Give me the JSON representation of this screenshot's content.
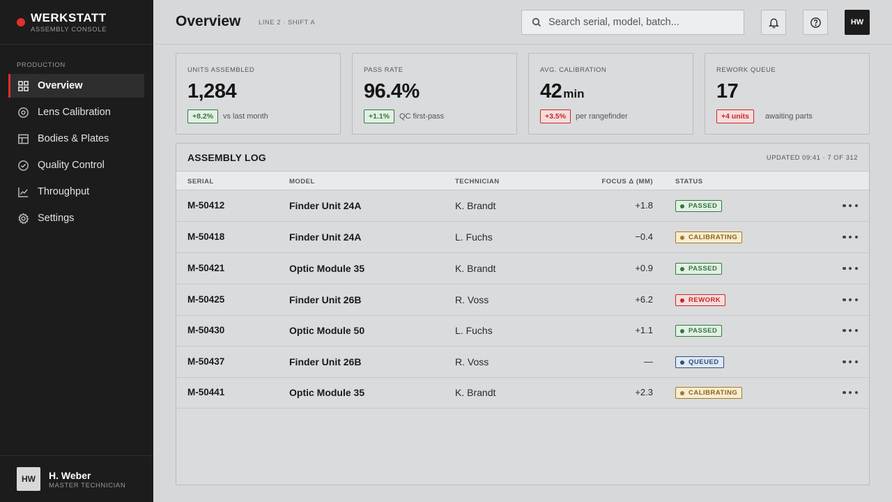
{
  "brand": {
    "name": "WERKSTATT",
    "subtitle": "ASSEMBLY CONSOLE",
    "accent": "#e0302a"
  },
  "sidebar": {
    "section": "PRODUCTION",
    "items": [
      {
        "label": "Overview",
        "icon": "grid-icon",
        "active": true
      },
      {
        "label": "Lens Calibration",
        "icon": "target-icon"
      },
      {
        "label": "Bodies & Plates",
        "icon": "layout-icon"
      },
      {
        "label": "Quality Control",
        "icon": "check-circle-icon"
      },
      {
        "label": "Throughput",
        "icon": "chart-line-icon"
      },
      {
        "label": "Settings",
        "icon": "gear-icon"
      }
    ]
  },
  "user": {
    "initials": "HW",
    "name": "H. Weber",
    "role": "MASTER TECHNICIAN"
  },
  "header": {
    "title": "Overview",
    "subtitle": "LINE 2 · SHIFT A",
    "search_placeholder": "Search serial, model, batch...",
    "avatar_initials": "HW"
  },
  "stats": [
    {
      "label": "UNITS ASSEMBLED",
      "value": "1,284",
      "unit": "",
      "delta": "+8.2%",
      "trend": "up",
      "note": "vs last month"
    },
    {
      "label": "PASS RATE",
      "value": "96.4%",
      "unit": "",
      "delta": "+1.1%",
      "trend": "up",
      "note": "QC first-pass"
    },
    {
      "label": "AVG. CALIBRATION",
      "value": "42",
      "unit": "min",
      "delta": "+3.5%",
      "trend": "down",
      "note": "per rangefinder"
    },
    {
      "label": "REWORK QUEUE",
      "value": "17",
      "unit": "",
      "delta": "+4 units",
      "trend": "down",
      "note": "awaiting parts"
    }
  ],
  "log": {
    "title": "ASSEMBLY LOG",
    "meta": "UPDATED 09:41 · 7 OF 312",
    "columns": {
      "serial": "SERIAL",
      "model": "MODEL",
      "technician": "TECHNICIAN",
      "focus": "FOCUS Δ (MM)",
      "status": "STATUS"
    },
    "rows": [
      {
        "serial": "M-50412",
        "model": "Finder Unit 24A",
        "technician": "K. Brandt",
        "focus": "+1.8",
        "status": "PASSED",
        "status_key": "passed"
      },
      {
        "serial": "M-50418",
        "model": "Finder Unit 24A",
        "technician": "L. Fuchs",
        "focus": "−0.4",
        "status": "CALIBRATING",
        "status_key": "calibrating"
      },
      {
        "serial": "M-50421",
        "model": "Optic Module 35",
        "technician": "K. Brandt",
        "focus": "+0.9",
        "status": "PASSED",
        "status_key": "passed"
      },
      {
        "serial": "M-50425",
        "model": "Finder Unit 26B",
        "technician": "R. Voss",
        "focus": "+6.2",
        "status": "REWORK",
        "status_key": "rework"
      },
      {
        "serial": "M-50430",
        "model": "Optic Module 50",
        "technician": "L. Fuchs",
        "focus": "+1.1",
        "status": "PASSED",
        "status_key": "passed"
      },
      {
        "serial": "M-50437",
        "model": "Finder Unit 26B",
        "technician": "R. Voss",
        "focus": "—",
        "status": "QUEUED",
        "status_key": "queued"
      },
      {
        "serial": "M-50441",
        "model": "Optic Module 35",
        "technician": "K. Brandt",
        "focus": "+2.3",
        "status": "CALIBRATING",
        "status_key": "calibrating"
      }
    ]
  }
}
